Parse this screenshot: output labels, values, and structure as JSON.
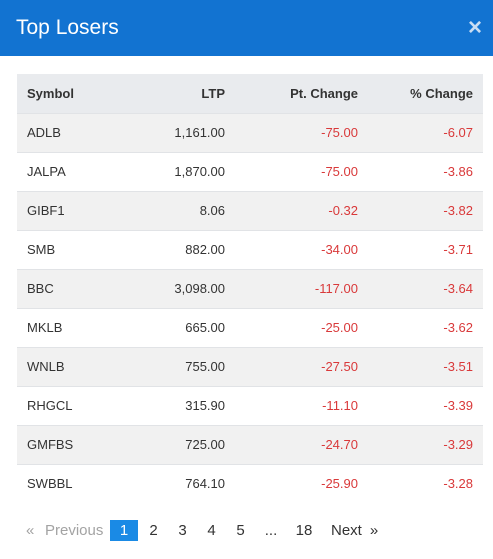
{
  "modal": {
    "title": "Top Losers",
    "close_label": "×"
  },
  "table": {
    "headers": {
      "symbol": "Symbol",
      "ltp": "LTP",
      "pt_change": "Pt. Change",
      "pct_change": "% Change"
    },
    "rows": [
      {
        "symbol": "ADLB",
        "ltp": "1,161.00",
        "pt_change": "-75.00",
        "pct_change": "-6.07"
      },
      {
        "symbol": "JALPA",
        "ltp": "1,870.00",
        "pt_change": "-75.00",
        "pct_change": "-3.86"
      },
      {
        "symbol": "GIBF1",
        "ltp": "8.06",
        "pt_change": "-0.32",
        "pct_change": "-3.82"
      },
      {
        "symbol": "SMB",
        "ltp": "882.00",
        "pt_change": "-34.00",
        "pct_change": "-3.71"
      },
      {
        "symbol": "BBC",
        "ltp": "3,098.00",
        "pt_change": "-117.00",
        "pct_change": "-3.64"
      },
      {
        "symbol": "MKLB",
        "ltp": "665.00",
        "pt_change": "-25.00",
        "pct_change": "-3.62"
      },
      {
        "symbol": "WNLB",
        "ltp": "755.00",
        "pt_change": "-27.50",
        "pct_change": "-3.51"
      },
      {
        "symbol": "RHGCL",
        "ltp": "315.90",
        "pt_change": "-11.10",
        "pct_change": "-3.39"
      },
      {
        "symbol": "GMFBS",
        "ltp": "725.00",
        "pt_change": "-24.70",
        "pct_change": "-3.29"
      },
      {
        "symbol": "SWBBL",
        "ltp": "764.10",
        "pt_change": "-25.90",
        "pct_change": "-3.28"
      }
    ]
  },
  "pagination": {
    "first_symbol": "«",
    "previous": "Previous",
    "pages": [
      "1",
      "2",
      "3",
      "4",
      "5"
    ],
    "current_page": "1",
    "ellipsis": "...",
    "last_page": "18",
    "next": "Next",
    "last_symbol": "»"
  },
  "colors": {
    "header_bg": "#1273d1",
    "negative": "#d9393a",
    "active_page": "#1a8ae5"
  }
}
